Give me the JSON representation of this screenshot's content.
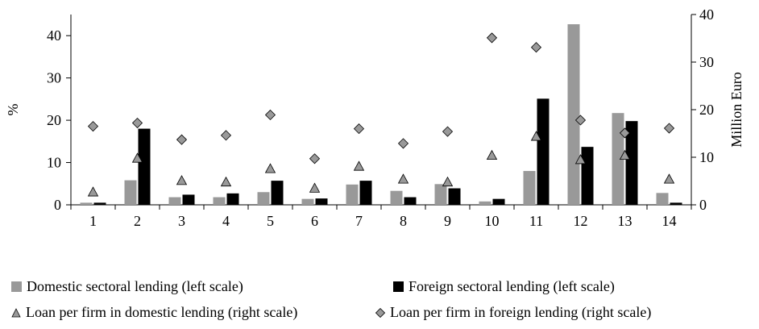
{
  "chart_data": {
    "type": "bar",
    "categories": [
      "1",
      "2",
      "3",
      "4",
      "5",
      "6",
      "7",
      "8",
      "9",
      "10",
      "11",
      "12",
      "13",
      "14"
    ],
    "ylabel": "%",
    "ylabel_right": "Million Euro",
    "ylim": [
      0,
      45
    ],
    "ylim_right": [
      0,
      40
    ],
    "yticks": [
      "0",
      "10",
      "20",
      "30",
      "40"
    ],
    "yticks_right": [
      "0",
      "10",
      "20",
      "30",
      "40"
    ],
    "grid": false,
    "legend_position": "bottom",
    "series": [
      {
        "name": "Domestic sectoral lending (left scale)",
        "type": "bar",
        "axis": "left",
        "color": "#999999",
        "values": [
          0.5,
          5.8,
          1.8,
          1.8,
          3.0,
          1.4,
          4.8,
          3.3,
          4.9,
          0.8,
          8.0,
          42.7,
          21.7,
          2.8
        ]
      },
      {
        "name": "Foreign sectoral lending (left scale)",
        "type": "bar",
        "axis": "left",
        "color": "#000000",
        "values": [
          0.5,
          18.0,
          2.4,
          2.7,
          5.7,
          1.5,
          5.7,
          1.8,
          3.9,
          1.4,
          25.1,
          13.7,
          19.8,
          0.5
        ]
      },
      {
        "name": "Loan per firm in domestic lending (right scale)",
        "type": "scatter",
        "marker": "triangle",
        "axis": "right",
        "color": "#999999",
        "values": [
          2.7,
          9.8,
          5.1,
          4.8,
          7.6,
          3.5,
          8.1,
          5.4,
          4.8,
          10.4,
          14.4,
          9.5,
          10.4,
          5.4
        ]
      },
      {
        "name": "Loan per firm in foreign lending (right scale)",
        "type": "scatter",
        "marker": "diamond",
        "axis": "right",
        "color": "#999999",
        "values": [
          16.5,
          17.2,
          13.7,
          14.6,
          18.9,
          9.7,
          16.0,
          12.9,
          15.4,
          35.1,
          33.1,
          17.8,
          15.1,
          16.1
        ]
      }
    ]
  }
}
